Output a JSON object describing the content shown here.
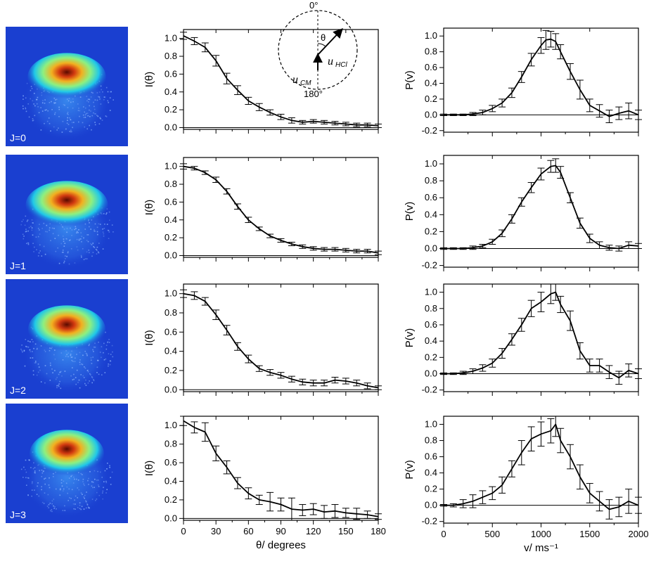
{
  "inset": {
    "top_label": "0°",
    "bottom_label": "180°",
    "theta_label": "θ",
    "u_cm_label": "u",
    "u_cm_sub": "CM",
    "u_hcl_label": "u",
    "u_hcl_sub": "HCl"
  },
  "chart_data": [
    {
      "type": "line",
      "panel": "angular-J0",
      "xlabel": "",
      "ylabel": "I(θ)",
      "xlim": [
        0,
        180
      ],
      "ylim": [
        -0.02,
        1.1
      ],
      "xticks": [
        0,
        30,
        60,
        90,
        120,
        150,
        180
      ],
      "yticks": [
        "0.0",
        "0.2",
        "0.4",
        "0.6",
        "0.8",
        "1.0"
      ],
      "x": [
        0,
        10,
        20,
        30,
        40,
        50,
        60,
        70,
        80,
        90,
        100,
        110,
        120,
        130,
        140,
        150,
        160,
        170,
        180
      ],
      "y": [
        1.03,
        0.97,
        0.9,
        0.75,
        0.55,
        0.42,
        0.3,
        0.23,
        0.17,
        0.12,
        0.08,
        0.06,
        0.07,
        0.06,
        0.05,
        0.04,
        0.03,
        0.03,
        0.02
      ],
      "err": [
        0.04,
        0.04,
        0.05,
        0.06,
        0.06,
        0.05,
        0.04,
        0.04,
        0.03,
        0.03,
        0.03,
        0.02,
        0.02,
        0.02,
        0.02,
        0.02,
        0.02,
        0.02,
        0.02
      ]
    },
    {
      "type": "line",
      "panel": "angular-J1",
      "xlabel": "",
      "ylabel": "I(θ)",
      "xlim": [
        0,
        180
      ],
      "ylim": [
        -0.02,
        1.1
      ],
      "xticks": [
        0,
        30,
        60,
        90,
        120,
        150,
        180
      ],
      "yticks": [
        "0.0",
        "0.2",
        "0.4",
        "0.6",
        "0.8",
        "1.0"
      ],
      "x": [
        0,
        10,
        20,
        30,
        40,
        50,
        60,
        70,
        80,
        90,
        100,
        110,
        120,
        130,
        140,
        150,
        160,
        170,
        180
      ],
      "y": [
        1.0,
        0.98,
        0.93,
        0.85,
        0.72,
        0.55,
        0.4,
        0.3,
        0.22,
        0.17,
        0.13,
        0.1,
        0.08,
        0.07,
        0.07,
        0.06,
        0.05,
        0.05,
        0.03
      ],
      "err": [
        0.03,
        0.02,
        0.02,
        0.03,
        0.03,
        0.03,
        0.03,
        0.02,
        0.02,
        0.02,
        0.02,
        0.02,
        0.02,
        0.02,
        0.02,
        0.02,
        0.02,
        0.02,
        0.02
      ]
    },
    {
      "type": "line",
      "panel": "angular-J2",
      "xlabel": "",
      "ylabel": "I(θ)",
      "xlim": [
        0,
        180
      ],
      "ylim": [
        -0.02,
        1.1
      ],
      "xticks": [
        0,
        30,
        60,
        90,
        120,
        150,
        180
      ],
      "yticks": [
        "0.0",
        "0.2",
        "0.4",
        "0.6",
        "0.8",
        "1.0"
      ],
      "x": [
        0,
        10,
        20,
        30,
        40,
        50,
        60,
        70,
        80,
        90,
        100,
        110,
        120,
        130,
        140,
        150,
        160,
        170,
        180
      ],
      "y": [
        1.0,
        0.98,
        0.92,
        0.78,
        0.62,
        0.45,
        0.32,
        0.22,
        0.18,
        0.15,
        0.11,
        0.08,
        0.07,
        0.07,
        0.1,
        0.09,
        0.07,
        0.04,
        0.02
      ],
      "err": [
        0.04,
        0.04,
        0.04,
        0.05,
        0.05,
        0.04,
        0.04,
        0.03,
        0.03,
        0.03,
        0.03,
        0.03,
        0.03,
        0.03,
        0.03,
        0.03,
        0.03,
        0.03,
        0.02
      ]
    },
    {
      "type": "line",
      "panel": "angular-J3",
      "xlabel": "θ/ degrees",
      "ylabel": "I(θ)",
      "xlim": [
        0,
        180
      ],
      "ylim": [
        -0.02,
        1.1
      ],
      "xticks": [
        0,
        30,
        60,
        90,
        120,
        150,
        180
      ],
      "yticks": [
        "0.0",
        "0.2",
        "0.4",
        "0.6",
        "0.8",
        "1.0"
      ],
      "x": [
        0,
        10,
        20,
        30,
        40,
        50,
        60,
        70,
        80,
        90,
        100,
        110,
        120,
        130,
        140,
        150,
        160,
        170,
        180
      ],
      "y": [
        1.05,
        0.98,
        0.93,
        0.7,
        0.55,
        0.38,
        0.27,
        0.2,
        0.18,
        0.15,
        0.1,
        0.09,
        0.1,
        0.07,
        0.08,
        0.06,
        0.05,
        0.04,
        0.02
      ],
      "err": [
        0.05,
        0.06,
        0.1,
        0.08,
        0.07,
        0.06,
        0.06,
        0.05,
        0.1,
        0.07,
        0.12,
        0.06,
        0.06,
        0.07,
        0.07,
        0.05,
        0.06,
        0.04,
        0.03
      ]
    },
    {
      "type": "line",
      "panel": "speed-J0",
      "xlabel": "",
      "ylabel": "P(v)",
      "xlim": [
        0,
        2000
      ],
      "ylim": [
        -0.22,
        1.1
      ],
      "xticks": [
        0,
        500,
        1000,
        1500,
        2000
      ],
      "yticks": [
        "-0.2",
        "0.0",
        "0.2",
        "0.4",
        "0.6",
        "0.8",
        "1.0"
      ],
      "x": [
        0,
        100,
        200,
        300,
        400,
        500,
        600,
        700,
        800,
        900,
        1000,
        1050,
        1100,
        1150,
        1200,
        1300,
        1400,
        1500,
        1600,
        1700,
        1800,
        1900,
        2000
      ],
      "y": [
        0.0,
        0.0,
        0.0,
        0.01,
        0.03,
        0.08,
        0.15,
        0.28,
        0.48,
        0.7,
        0.88,
        0.95,
        0.96,
        0.93,
        0.8,
        0.55,
        0.32,
        0.12,
        0.05,
        -0.02,
        0.02,
        0.05,
        0.0
      ],
      "err": [
        0.01,
        0.01,
        0.01,
        0.02,
        0.03,
        0.04,
        0.05,
        0.06,
        0.07,
        0.08,
        0.1,
        0.12,
        0.1,
        0.1,
        0.09,
        0.1,
        0.12,
        0.08,
        0.08,
        0.08,
        0.08,
        0.1,
        0.06
      ]
    },
    {
      "type": "line",
      "panel": "speed-J1",
      "xlabel": "",
      "ylabel": "P(v)",
      "xlim": [
        0,
        2000
      ],
      "ylim": [
        -0.22,
        1.1
      ],
      "xticks": [
        0,
        500,
        1000,
        1500,
        2000
      ],
      "yticks": [
        "-0.2",
        "0.0",
        "0.2",
        "0.4",
        "0.6",
        "0.8",
        "1.0"
      ],
      "x": [
        0,
        100,
        200,
        300,
        400,
        500,
        600,
        700,
        800,
        900,
        1000,
        1100,
        1150,
        1200,
        1300,
        1400,
        1500,
        1600,
        1700,
        1800,
        1900,
        2000
      ],
      "y": [
        0.0,
        0.0,
        0.0,
        0.01,
        0.03,
        0.08,
        0.18,
        0.35,
        0.55,
        0.72,
        0.88,
        0.97,
        0.98,
        0.9,
        0.6,
        0.3,
        0.12,
        0.04,
        0.01,
        0.0,
        0.04,
        0.03
      ],
      "err": [
        0.01,
        0.01,
        0.01,
        0.02,
        0.02,
        0.03,
        0.04,
        0.05,
        0.05,
        0.06,
        0.07,
        0.07,
        0.08,
        0.07,
        0.06,
        0.06,
        0.05,
        0.04,
        0.03,
        0.03,
        0.04,
        0.03
      ]
    },
    {
      "type": "line",
      "panel": "speed-J2",
      "xlabel": "",
      "ylabel": "P(v)",
      "xlim": [
        0,
        2000
      ],
      "ylim": [
        -0.22,
        1.1
      ],
      "xticks": [
        0,
        500,
        1000,
        1500,
        2000
      ],
      "yticks": [
        "-0.2",
        "0.0",
        "0.2",
        "0.4",
        "0.6",
        "0.8",
        "1.0"
      ],
      "x": [
        0,
        100,
        200,
        300,
        400,
        500,
        600,
        700,
        800,
        900,
        1000,
        1100,
        1150,
        1200,
        1300,
        1400,
        1500,
        1600,
        1700,
        1800,
        1900,
        2000
      ],
      "y": [
        0.0,
        0.0,
        0.01,
        0.03,
        0.07,
        0.13,
        0.25,
        0.42,
        0.6,
        0.8,
        0.88,
        0.98,
        1.0,
        0.85,
        0.65,
        0.28,
        0.1,
        0.1,
        0.02,
        -0.05,
        0.04,
        0.0
      ],
      "err": [
        0.01,
        0.01,
        0.02,
        0.03,
        0.04,
        0.05,
        0.06,
        0.07,
        0.08,
        0.1,
        0.12,
        0.12,
        0.1,
        0.1,
        0.12,
        0.1,
        0.08,
        0.08,
        0.08,
        0.08,
        0.08,
        0.06
      ]
    },
    {
      "type": "line",
      "panel": "speed-J3",
      "xlabel": "v/ ms⁻¹",
      "ylabel": "P(v)",
      "xlim": [
        0,
        2000
      ],
      "ylim": [
        -0.22,
        1.1
      ],
      "xticks": [
        0,
        500,
        1000,
        1500,
        2000
      ],
      "yticks": [
        "-0.2",
        "0.0",
        "0.2",
        "0.4",
        "0.6",
        "0.8",
        "1.0"
      ],
      "x": [
        0,
        100,
        200,
        300,
        400,
        500,
        600,
        700,
        800,
        900,
        1000,
        1100,
        1150,
        1200,
        1300,
        1400,
        1500,
        1600,
        1700,
        1800,
        1900,
        2000
      ],
      "y": [
        0.0,
        0.0,
        0.02,
        0.05,
        0.1,
        0.15,
        0.25,
        0.45,
        0.65,
        0.82,
        0.88,
        0.92,
        1.0,
        0.8,
        0.6,
        0.35,
        0.15,
        0.05,
        -0.05,
        -0.02,
        0.05,
        0.0
      ],
      "err": [
        0.01,
        0.02,
        0.05,
        0.08,
        0.08,
        0.08,
        0.1,
        0.1,
        0.15,
        0.15,
        0.15,
        0.15,
        0.15,
        0.15,
        0.15,
        0.15,
        0.12,
        0.12,
        0.12,
        0.12,
        0.15,
        0.1
      ]
    }
  ],
  "images": [
    {
      "label": "J=0",
      "core_intensity": 0.8
    },
    {
      "label": "J=1",
      "core_intensity": 1.0
    },
    {
      "label": "J=2",
      "core_intensity": 0.75
    },
    {
      "label": "J=3",
      "core_intensity": 0.6
    }
  ],
  "colors": {
    "image_background": "#1a3fd0",
    "line": "#000000"
  }
}
